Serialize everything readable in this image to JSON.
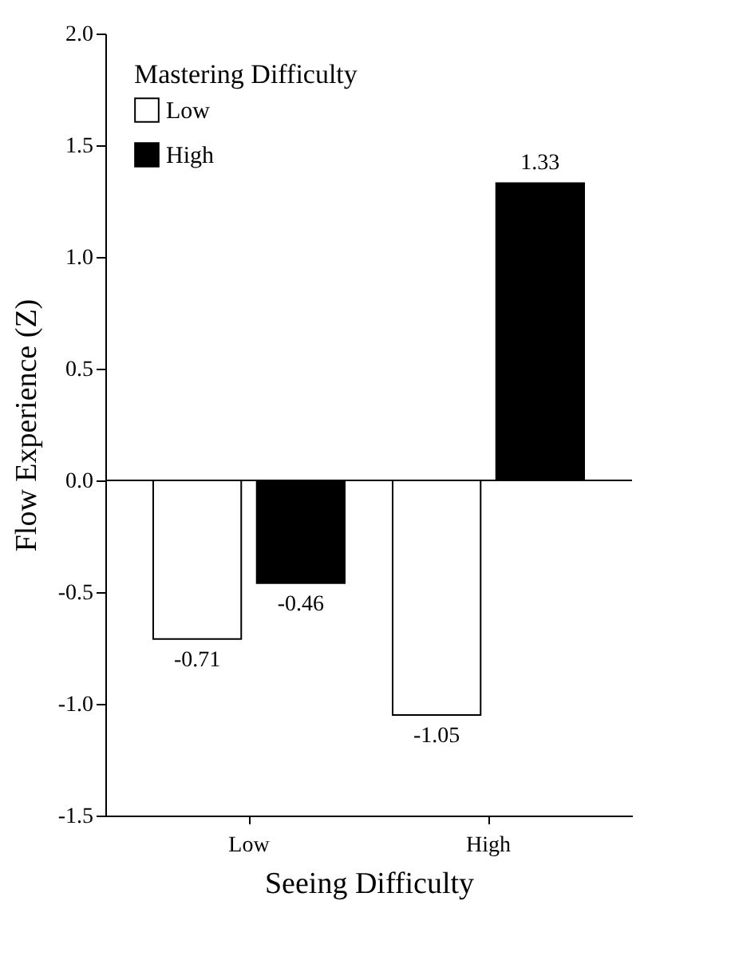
{
  "chart_data": {
    "type": "bar",
    "xlabel": "Seeing Difficulty",
    "ylabel": "Flow Experience (Z)",
    "legend_title": "Mastering Difficulty",
    "categories": [
      "Low",
      "High"
    ],
    "series": [
      {
        "name": "Low",
        "color": "#ffffff",
        "values": [
          -0.71,
          -1.05
        ]
      },
      {
        "name": "High",
        "color": "#000000",
        "values": [
          -0.46,
          1.33
        ]
      }
    ],
    "ylim": [
      -1.5,
      2.0
    ],
    "yticks": [
      {
        "value": -1.5,
        "label": "-1.5"
      },
      {
        "value": -1,
        "label": "-1.0"
      },
      {
        "value": -0.5,
        "label": "-0.5"
      },
      {
        "value": 0,
        "label": "0.0"
      },
      {
        "value": 0.5,
        "label": "0.5"
      },
      {
        "value": 1,
        "label": "1.0"
      },
      {
        "value": 1.5,
        "label": "1.5"
      },
      {
        "value": 2,
        "label": "2.0"
      }
    ],
    "ref_lines": [
      {
        "axis": "y",
        "value": 0
      }
    ],
    "data_labels": true,
    "legend": "top left",
    "grid": false
  }
}
